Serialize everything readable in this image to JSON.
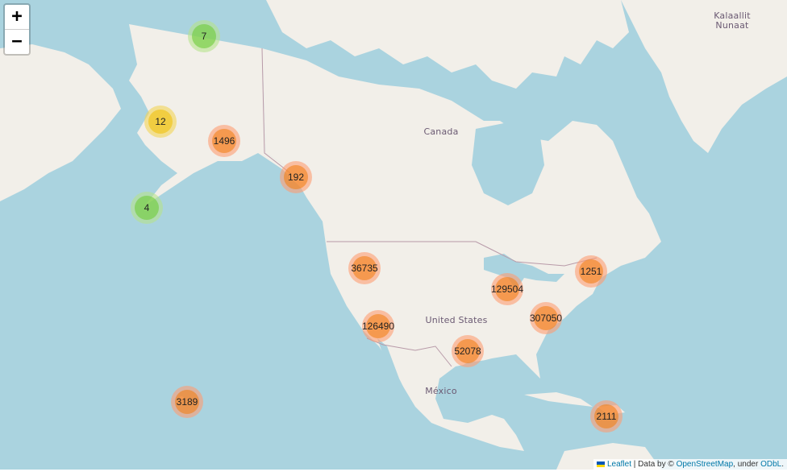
{
  "zoom": {
    "in_label": "+",
    "out_label": "−"
  },
  "labels": {
    "greenland": [
      "Kalaallit",
      "Nunaat"
    ],
    "canada": "Canada",
    "usa": "United States",
    "mexico": "México"
  },
  "clusters": [
    {
      "count": "7",
      "size_class": "small"
    },
    {
      "count": "12",
      "size_class": "medium"
    },
    {
      "count": "1496",
      "size_class": "large"
    },
    {
      "count": "192",
      "size_class": "large"
    },
    {
      "count": "4",
      "size_class": "small"
    },
    {
      "count": "36735",
      "size_class": "large"
    },
    {
      "count": "1251",
      "size_class": "large"
    },
    {
      "count": "129504",
      "size_class": "large"
    },
    {
      "count": "307050",
      "size_class": "large"
    },
    {
      "count": "126490",
      "size_class": "large"
    },
    {
      "count": "52078",
      "size_class": "large"
    },
    {
      "count": "3189",
      "size_class": "large"
    },
    {
      "count": "2111",
      "size_class": "large"
    }
  ],
  "attribution": {
    "leaflet": "Leaflet",
    "data_by": "| Data by ©",
    "osm": "OpenStreetMap",
    "under": ", under",
    "odbl": "ODbL",
    "end": "."
  }
}
